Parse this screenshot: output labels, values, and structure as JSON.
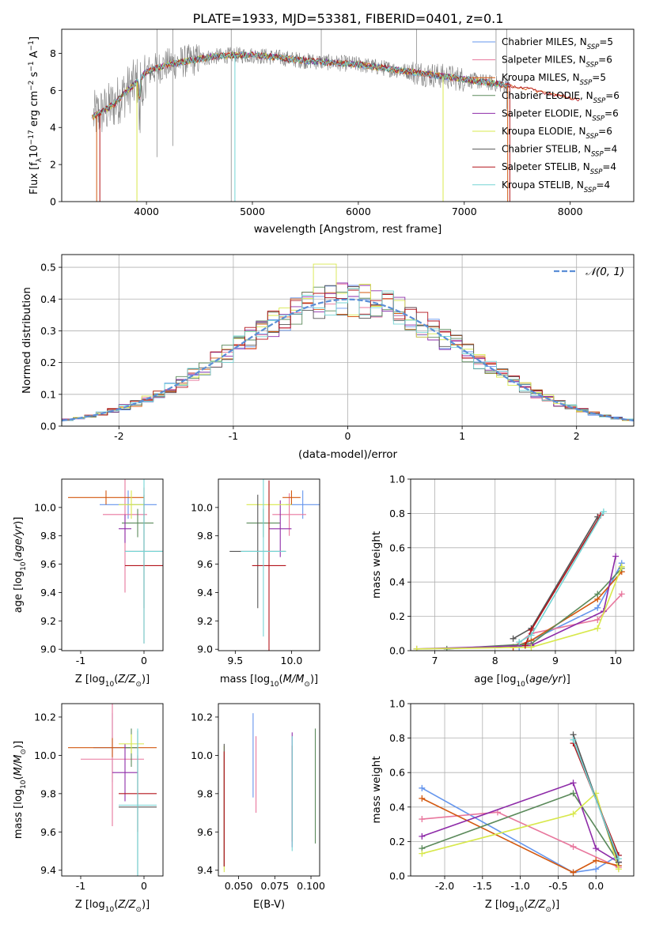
{
  "title": "PLATE=1933, MJD=53381, FIBERID=0401, z=0.1",
  "colors": [
    "#6495ed",
    "#e8779d",
    "#d3580f",
    "#5b8a5b",
    "#8e2ca8",
    "#d8e84c",
    "#555555",
    "#b3151c",
    "#74d4d4"
  ],
  "chart_data": [
    {
      "id": "spectrum",
      "type": "line",
      "xlabel": "wavelength [Angstrom, rest frame]",
      "ylabel": "Flux [f_λ 10^-17 erg cm^-2 s^-1 A^-1]",
      "xlim": [
        3200,
        8600
      ],
      "ylim": [
        0,
        9.3
      ],
      "xticks": [
        4000,
        5000,
        6000,
        7000,
        8000
      ],
      "yticks": [
        0,
        2,
        4,
        6,
        8
      ],
      "legend_position": "top-right",
      "grid": false,
      "legend": [
        {
          "prefix": "Chabrier MILES, N",
          "sub": "SSP",
          "suffix": "=5"
        },
        {
          "prefix": "Salpeter MILES, N",
          "sub": "SSP",
          "suffix": "=6"
        },
        {
          "prefix": "Kroupa MILES, N",
          "sub": "SSP",
          "suffix": "=5"
        },
        {
          "prefix": "Chabrier ELODIE, N",
          "sub": "SSP",
          "suffix": "=6"
        },
        {
          "prefix": "Salpeter ELODIE, N",
          "sub": "SSP",
          "suffix": "=6"
        },
        {
          "prefix": "Kroupa ELODIE, N",
          "sub": "SSP",
          "suffix": "=6"
        },
        {
          "prefix": "Chabrier STELIB, N",
          "sub": "SSP",
          "suffix": "=4"
        },
        {
          "prefix": "Salpeter STELIB, N",
          "sub": "SSP",
          "suffix": "=4"
        },
        {
          "prefix": "Kroupa STELIB, N",
          "sub": "SSP",
          "suffix": "=4"
        }
      ],
      "continuum": {
        "x": [
          3500,
          3600,
          3700,
          3800,
          3900,
          4000,
          4200,
          4400,
          4600,
          4800,
          5000,
          5200,
          5500,
          6000,
          6500,
          7000,
          7500,
          8000,
          8400
        ],
        "y": [
          4.6,
          4.9,
          5.3,
          5.9,
          6.4,
          7.0,
          7.4,
          7.6,
          7.8,
          7.9,
          7.9,
          7.8,
          7.6,
          7.4,
          7.0,
          6.6,
          6.2,
          5.6,
          5.2
        ]
      }
    },
    {
      "id": "residuals",
      "type": "histogram",
      "xlabel": "(data-model)/error",
      "ylabel": "Normed distribution",
      "xlim": [
        -2.5,
        2.5
      ],
      "ylim": [
        0,
        0.54
      ],
      "xticks": [
        -2,
        -1,
        0,
        1,
        2
      ],
      "yticks": [
        0.0,
        0.1,
        0.2,
        0.3,
        0.4,
        0.5
      ],
      "grid": true,
      "legend_position": "top-right",
      "reference_curve": {
        "label": "𝒩(0, 1)",
        "mean": 0,
        "sigma": 1
      },
      "bin_width": 0.1,
      "peak_value": 0.51
    },
    {
      "id": "age-vs-Z",
      "type": "errorbar",
      "xlabel": "Z [log10(Z/Z⊙)]",
      "ylabel": "age  [log10(age/yr)]",
      "xlim": [
        -1.3,
        0.3
      ],
      "ylim": [
        8.99,
        10.2
      ],
      "xticks": [
        -1,
        0
      ],
      "yticks": [
        9.0,
        9.2,
        9.4,
        9.6,
        9.8,
        10.0
      ],
      "points": [
        {
          "x": -0.25,
          "y": 10.02,
          "xerr": 0.45,
          "yerr": 0.1
        },
        {
          "x": -0.3,
          "y": 9.95,
          "xerr": 0.35,
          "yerr": 0.55
        },
        {
          "x": -0.6,
          "y": 10.07,
          "xerr": 0.6,
          "yerr": 0.05
        },
        {
          "x": -0.1,
          "y": 9.89,
          "xerr": 0.25,
          "yerr": 0.1
        },
        {
          "x": -0.3,
          "y": 9.85,
          "xerr": 0.1,
          "yerr": 0.1
        },
        {
          "x": -0.2,
          "y": 10.02,
          "xerr": 0.2,
          "yerr": 0.1
        },
        {
          "x": 0.0,
          "y": 9.69,
          "xerr": 0.3,
          "yerr": 0.4
        },
        {
          "x": 0.0,
          "y": 9.59,
          "xerr": 0.3,
          "yerr": 0.55
        },
        {
          "x": 0.0,
          "y": 9.69,
          "xerr": 0.3,
          "yerr": 0.65
        }
      ]
    },
    {
      "id": "age-vs-mass",
      "type": "errorbar",
      "xlabel": "mass [log10(M/M⊙)]",
      "ylabel": "",
      "xlim": [
        9.35,
        10.25
      ],
      "ylim": [
        8.99,
        10.2
      ],
      "xticks": [
        9.5,
        10.0
      ],
      "yticks": [
        9.0,
        9.2,
        9.4,
        9.6,
        9.8,
        10.0
      ],
      "points": [
        {
          "x": 10.1,
          "y": 10.02,
          "xerr": 0.15,
          "yerr": 0.1
        },
        {
          "x": 9.98,
          "y": 9.95,
          "xerr": 0.15,
          "yerr": 0.15
        },
        {
          "x": 10.0,
          "y": 10.07,
          "xerr": 0.08,
          "yerr": 0.05
        },
        {
          "x": 9.75,
          "y": 9.89,
          "xerr": 0.15,
          "yerr": 0.1
        },
        {
          "x": 9.9,
          "y": 9.85,
          "xerr": 0.1,
          "yerr": 0.2
        },
        {
          "x": 9.8,
          "y": 10.02,
          "xerr": 0.2,
          "yerr": 0.1
        },
        {
          "x": 9.7,
          "y": 9.69,
          "xerr": 0.25,
          "yerr": 0.4
        },
        {
          "x": 9.8,
          "y": 9.59,
          "xerr": 0.15,
          "yerr": 0.6
        },
        {
          "x": 9.75,
          "y": 9.69,
          "xerr": 0.2,
          "yerr": 0.6
        }
      ]
    },
    {
      "id": "weight-vs-age",
      "type": "line",
      "xlabel": "age  [log10(age/yr)]",
      "ylabel": "mass weight",
      "xlim": [
        6.6,
        10.3
      ],
      "ylim": [
        0,
        1.0
      ],
      "xticks": [
        7,
        8,
        9,
        10
      ],
      "yticks": [
        0.0,
        0.2,
        0.4,
        0.6,
        0.8,
        1.0
      ],
      "grid": true,
      "series": [
        {
          "x": [
            8.4,
            8.6,
            9.7,
            10.1
          ],
          "y": [
            0.02,
            0.06,
            0.25,
            0.51
          ]
        },
        {
          "x": [
            8.3,
            8.6,
            9.7,
            10.1
          ],
          "y": [
            0.02,
            0.1,
            0.18,
            0.33
          ]
        },
        {
          "x": [
            8.3,
            8.6,
            9.7,
            10.1
          ],
          "y": [
            0.02,
            0.06,
            0.3,
            0.46
          ]
        },
        {
          "x": [
            7.2,
            8.6,
            9.7,
            10.1
          ],
          "y": [
            0.01,
            0.04,
            0.33,
            0.48
          ]
        },
        {
          "x": [
            6.7,
            8.6,
            9.8,
            10.0
          ],
          "y": [
            0.01,
            0.03,
            0.23,
            0.55
          ]
        },
        {
          "x": [
            6.7,
            8.6,
            9.7,
            10.1
          ],
          "y": [
            0.01,
            0.02,
            0.13,
            0.49
          ]
        },
        {
          "x": [
            8.3,
            8.6,
            9.7
          ],
          "y": [
            0.07,
            0.13,
            0.78
          ]
        },
        {
          "x": [
            8.5,
            8.6,
            9.75
          ],
          "y": [
            0.03,
            0.12,
            0.79
          ]
        },
        {
          "x": [
            8.4,
            8.6,
            9.8
          ],
          "y": [
            0.05,
            0.09,
            0.81
          ]
        }
      ]
    },
    {
      "id": "mass-vs-Z",
      "type": "errorbar",
      "xlabel": "Z [log10(Z/Z⊙)]",
      "ylabel": "mass [log10(M/M⊙)]",
      "xlim": [
        -1.3,
        0.3
      ],
      "ylim": [
        9.37,
        10.27
      ],
      "xticks": [
        -1,
        0
      ],
      "yticks": [
        9.4,
        9.6,
        9.8,
        10.0,
        10.2
      ],
      "points": [
        {
          "x": -0.5,
          "y": 10.04,
          "xerr": 0.3,
          "yerr": 0.18
        },
        {
          "x": -0.5,
          "y": 9.98,
          "xerr": 0.5,
          "yerr": 0.35
        },
        {
          "x": -0.5,
          "y": 10.04,
          "xerr": 0.7,
          "yerr": 0.05
        },
        {
          "x": -0.2,
          "y": 10.04,
          "xerr": 0.1,
          "yerr": 0.1
        },
        {
          "x": -0.3,
          "y": 9.91,
          "xerr": 0.2,
          "yerr": 0.15
        },
        {
          "x": -0.2,
          "y": 10.06,
          "xerr": 0.2,
          "yerr": 0.05
        },
        {
          "x": -0.1,
          "y": 9.73,
          "xerr": 0.3,
          "yerr": 0.4
        },
        {
          "x": -0.1,
          "y": 9.8,
          "xerr": 0.3,
          "yerr": 0.2
        },
        {
          "x": -0.1,
          "y": 9.74,
          "xerr": 0.3,
          "yerr": 0.4
        }
      ]
    },
    {
      "id": "mass-vs-ebv",
      "type": "errorbar",
      "xlabel": "E(B-V)",
      "ylabel": "",
      "xlim": [
        0.036,
        0.106
      ],
      "ylim": [
        9.37,
        10.27
      ],
      "xticks": [
        0.05,
        0.075,
        0.1
      ],
      "xtick_labels": [
        "0.050",
        "0.075",
        "0.100"
      ],
      "yticks": [
        9.4,
        9.6,
        9.8,
        10.0,
        10.2
      ],
      "points": [
        {
          "x": 0.06,
          "y": 10.0,
          "yerr": 0.22
        },
        {
          "x": 0.062,
          "y": 9.9,
          "yerr": 0.2
        },
        {
          "x": 0.087,
          "y": 9.8,
          "yerr": 0.25
        },
        {
          "x": 0.103,
          "y": 9.84,
          "yerr": 0.3
        },
        {
          "x": 0.087,
          "y": 9.82,
          "yerr": 0.3
        },
        {
          "x": 0.04,
          "y": 9.72,
          "yerr": 0.33
        },
        {
          "x": 0.04,
          "y": 9.74,
          "yerr": 0.32
        },
        {
          "x": 0.04,
          "y": 9.72,
          "yerr": 0.3
        },
        {
          "x": 0.087,
          "y": 9.8,
          "yerr": 0.3
        }
      ]
    },
    {
      "id": "weight-vs-Z",
      "type": "line",
      "xlabel": "Z [log10(Z/Z⊙)]",
      "ylabel": "mass weight",
      "xlim": [
        -2.45,
        0.5
      ],
      "ylim": [
        0,
        1.0
      ],
      "xticks": [
        -2.0,
        -1.5,
        -1.0,
        -0.5,
        0.0
      ],
      "yticks": [
        0.0,
        0.2,
        0.4,
        0.6,
        0.8,
        1.0
      ],
      "grid": true,
      "series": [
        {
          "x": [
            -2.3,
            -0.3,
            0.0,
            0.3
          ],
          "y": [
            0.51,
            0.02,
            0.04,
            0.12
          ]
        },
        {
          "x": [
            -2.3,
            -1.3,
            -0.3,
            0.3
          ],
          "y": [
            0.33,
            0.37,
            0.17,
            0.05
          ]
        },
        {
          "x": [
            -2.3,
            -0.3,
            0.0,
            0.3
          ],
          "y": [
            0.45,
            0.02,
            0.09,
            0.06
          ]
        },
        {
          "x": [
            -2.3,
            -0.3,
            0.3
          ],
          "y": [
            0.16,
            0.48,
            0.08
          ]
        },
        {
          "x": [
            -2.3,
            -0.3,
            0.0,
            0.3
          ],
          "y": [
            0.23,
            0.54,
            0.16,
            0.08
          ]
        },
        {
          "x": [
            -2.3,
            -0.3,
            0.0,
            0.3
          ],
          "y": [
            0.13,
            0.36,
            0.48,
            0.04
          ]
        },
        {
          "x": [
            -0.3,
            0.3
          ],
          "y": [
            0.82,
            0.08
          ]
        },
        {
          "x": [
            -0.3,
            0.3
          ],
          "y": [
            0.77,
            0.12
          ]
        },
        {
          "x": [
            -0.3,
            0.3
          ],
          "y": [
            0.79,
            0.1
          ]
        }
      ]
    }
  ]
}
